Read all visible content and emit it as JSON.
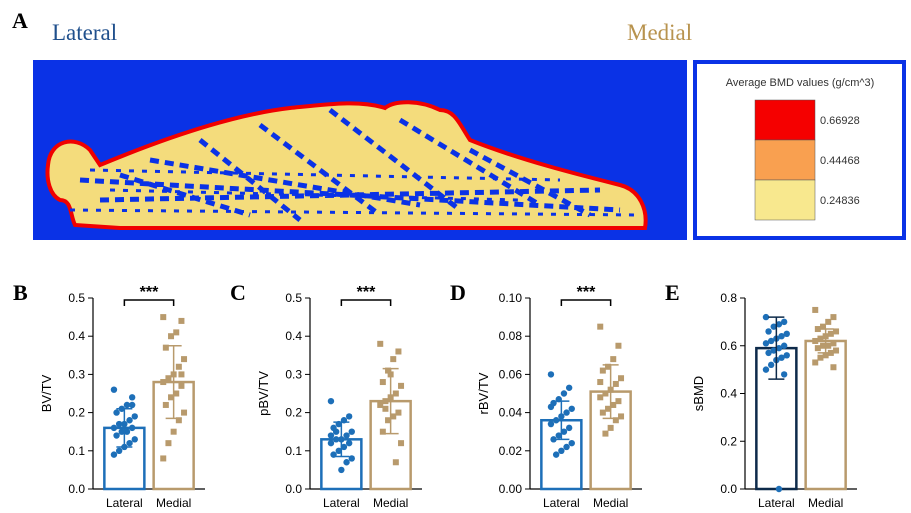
{
  "panel_a": {
    "label": "A",
    "left_label": "Lateral",
    "right_label": "Medial",
    "legend": {
      "title": "Average BMD values (g/cm^3)",
      "items": [
        {
          "label": "0.66928",
          "color": "#f50000"
        },
        {
          "label": "0.44468",
          "color": "#f9a050"
        },
        {
          "label": "0.24836",
          "color": "#f8e88e"
        }
      ]
    }
  },
  "chart_data": [
    {
      "type": "bar",
      "panel_label": "B",
      "ylabel": "BV/TV",
      "annotation": "***",
      "categories": [
        "Lateral",
        "Medial"
      ],
      "values": [
        0.16,
        0.28
      ],
      "errors": [
        0.05,
        0.095
      ],
      "colors": [
        "#1d6fb8",
        "#b89a6c"
      ],
      "edge_colors": [
        "#1d6fb8",
        "#b89a6c"
      ],
      "points": [
        [
          0.26,
          0.24,
          0.22,
          0.21,
          0.2,
          0.19,
          0.18,
          0.17,
          0.17,
          0.16,
          0.16,
          0.15,
          0.15,
          0.14,
          0.13,
          0.12,
          0.11,
          0.1,
          0.09,
          0.22
        ],
        [
          0.45,
          0.44,
          0.41,
          0.4,
          0.37,
          0.34,
          0.32,
          0.3,
          0.29,
          0.28,
          0.27,
          0.25,
          0.24,
          0.22,
          0.2,
          0.18,
          0.15,
          0.12,
          0.08,
          0.3
        ]
      ],
      "ylim": [
        0,
        0.5
      ],
      "yticks": [
        {
          "value": 0,
          "label": "0.0"
        },
        0.1,
        0.2,
        0.3,
        0.4,
        0.5
      ]
    },
    {
      "type": "bar",
      "panel_label": "C",
      "ylabel": "pBV/TV",
      "annotation": "***",
      "categories": [
        "Lateral",
        "Medial"
      ],
      "values": [
        0.13,
        0.23
      ],
      "errors": [
        0.045,
        0.085
      ],
      "colors": [
        "#1d6fb8",
        "#b89a6c"
      ],
      "edge_colors": [
        "#1d6fb8",
        "#b89a6c"
      ],
      "points": [
        [
          0.23,
          0.19,
          0.18,
          0.17,
          0.16,
          0.15,
          0.14,
          0.13,
          0.13,
          0.12,
          0.12,
          0.11,
          0.1,
          0.09,
          0.08,
          0.07,
          0.05,
          0.15,
          0.14
        ],
        [
          0.38,
          0.36,
          0.34,
          0.31,
          0.28,
          0.27,
          0.25,
          0.24,
          0.23,
          0.22,
          0.2,
          0.19,
          0.18,
          0.15,
          0.12,
          0.07,
          0.3,
          0.21
        ]
      ],
      "ylim": [
        0,
        0.5
      ],
      "yticks": [
        {
          "value": 0,
          "label": "0.0"
        },
        0.1,
        0.2,
        0.3,
        0.4,
        0.5
      ]
    },
    {
      "type": "bar",
      "panel_label": "D",
      "ylabel": "rBV/TV",
      "annotation": "***",
      "categories": [
        "Lateral",
        "Medial"
      ],
      "values": [
        0.036,
        0.051
      ],
      "errors": [
        0.01,
        0.014
      ],
      "colors": [
        "#1d6fb8",
        "#b89a6c"
      ],
      "edge_colors": [
        "#1d6fb8",
        "#b89a6c"
      ],
      "points": [
        [
          0.06,
          0.053,
          0.05,
          0.047,
          0.045,
          0.042,
          0.04,
          0.038,
          0.036,
          0.034,
          0.032,
          0.03,
          0.028,
          0.026,
          0.024,
          0.022,
          0.02,
          0.018,
          0.043
        ],
        [
          0.085,
          0.075,
          0.068,
          0.064,
          0.062,
          0.058,
          0.055,
          0.052,
          0.05,
          0.048,
          0.046,
          0.044,
          0.042,
          0.04,
          0.038,
          0.036,
          0.032,
          0.029,
          0.056
        ]
      ],
      "ylim": [
        0,
        0.1
      ],
      "yticks": [
        {
          "value": 0,
          "label": "0.00"
        },
        0.02,
        0.04,
        0.06,
        0.08,
        {
          "value": 0.1,
          "label": "0.10"
        }
      ]
    },
    {
      "type": "bar",
      "panel_label": "E",
      "ylabel": "sBMD",
      "categories": [
        "Lateral",
        "Medial"
      ],
      "values": [
        0.59,
        0.62
      ],
      "errors": [
        0.13,
        0.05
      ],
      "colors": [
        "#1d6fb8",
        "#b89a6c"
      ],
      "edge_colors": [
        "#0d2a4a",
        "#b89a6c"
      ],
      "points": [
        [
          0.72,
          0.7,
          0.69,
          0.68,
          0.66,
          0.65,
          0.64,
          0.63,
          0.62,
          0.61,
          0.6,
          0.59,
          0.58,
          0.57,
          0.56,
          0.55,
          0.54,
          0.52,
          0.5,
          0.48,
          0.0
        ],
        [
          0.75,
          0.72,
          0.7,
          0.68,
          0.67,
          0.66,
          0.65,
          0.64,
          0.63,
          0.62,
          0.61,
          0.6,
          0.6,
          0.59,
          0.58,
          0.57,
          0.56,
          0.55,
          0.53,
          0.51
        ]
      ],
      "ylim": [
        0,
        0.8
      ],
      "yticks": [
        {
          "value": 0,
          "label": "0.0"
        },
        0.2,
        0.4,
        0.6,
        0.8
      ]
    }
  ]
}
